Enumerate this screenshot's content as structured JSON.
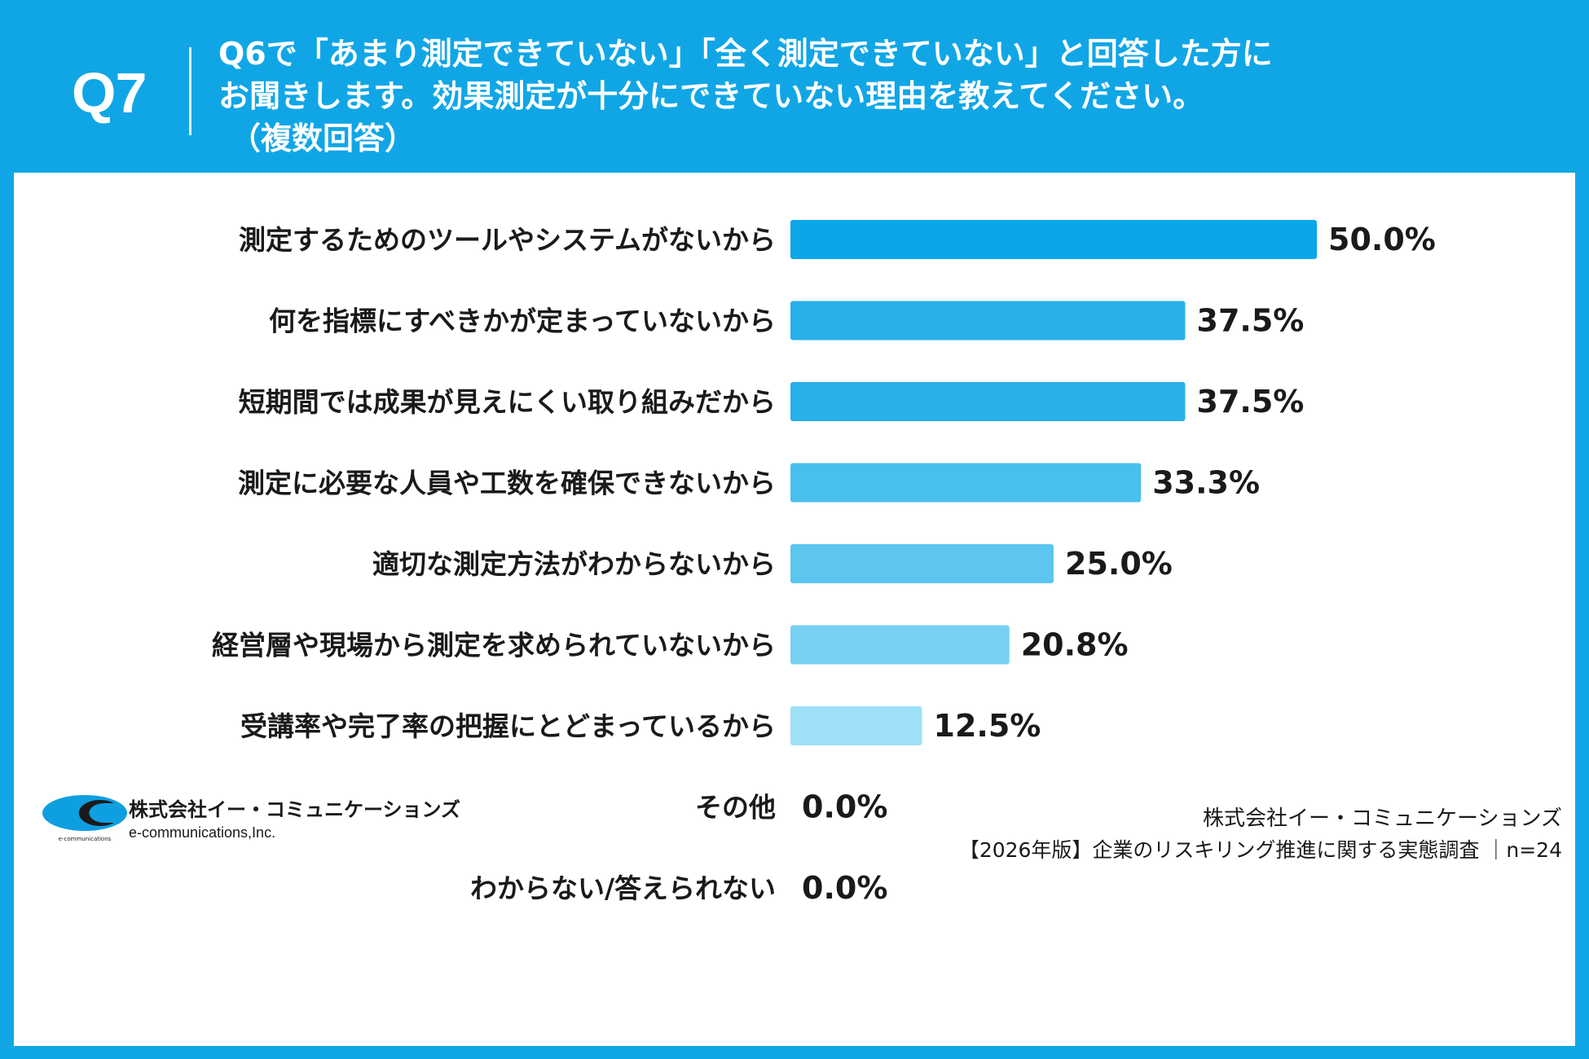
{
  "header": {
    "question_number": "Q7",
    "question_line1": "Q6で「あまり測定できていない」「全く測定できていない」と回答した方に",
    "question_line2": "お聞きします。効果測定が十分にできていない理由を教えてください。",
    "question_note": "（複数回答）"
  },
  "chart_data": {
    "type": "bar",
    "orientation": "horizontal",
    "categories": [
      "測定するためのツールやシステムがないから",
      "何を指標にすべきかが定まっていないから",
      "短期間では成果が見えにくい取り組みだから",
      "測定に必要な人員や工数を確保できないから",
      "適切な測定方法がわからないから",
      "経営層や現場から測定を求められていないから",
      "受講率や完了率の把握にとどまっているから",
      "その他",
      "わからない/答えられない"
    ],
    "values": [
      50.0,
      37.5,
      37.5,
      33.3,
      25.0,
      20.8,
      12.5,
      0.0,
      0.0
    ],
    "value_labels": [
      "50.0%",
      "37.5%",
      "37.5%",
      "33.3%",
      "25.0%",
      "20.8%",
      "12.5%",
      "0.0%",
      "0.0%"
    ],
    "bar_colors": [
      "#0aa6e8",
      "#27b0ea",
      "#27b0ea",
      "#49bfee",
      "#5cc6f0",
      "#78d1f3",
      "#9ee0f7",
      "#b7e8f9",
      "#b7e8f9"
    ],
    "xlim": [
      0,
      50
    ]
  },
  "footer": {
    "logo_company": "株式会社イー・コミュニケーションズ",
    "logo_sub": "e-communications,Inc.",
    "logo_tiny": "e-communications",
    "source_company": "株式会社イー・コミュニケーションズ",
    "source_survey": "【2026年版】企業のリスキリング推進に関する実態調査 ｜n=24"
  },
  "colors": {
    "frame": "#10a6e6",
    "logo_blue": "#0e9fe0",
    "logo_dark": "#1a1a1a"
  }
}
